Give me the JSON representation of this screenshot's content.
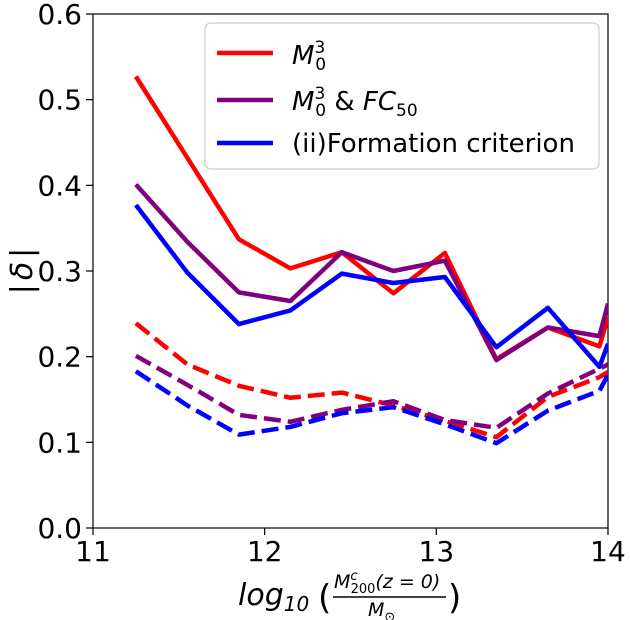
{
  "chart_data": {
    "type": "line",
    "xlim": [
      11,
      14
    ],
    "ylim": [
      0.0,
      0.6
    ],
    "x_ticks": [
      "11",
      "12",
      "13",
      "14"
    ],
    "y_ticks": [
      "0.0",
      "0.1",
      "0.2",
      "0.3",
      "0.4",
      "0.5",
      "0.6"
    ],
    "ylabel": "| δ |",
    "xlabel": "log10(M^c_200(z = 0) / M_⊙)",
    "grid": false,
    "legend_position": "top-right",
    "x": [
      11.25,
      11.55,
      11.85,
      12.15,
      12.45,
      12.75,
      13.05,
      13.35,
      13.65,
      13.95,
      14.0
    ],
    "series": [
      {
        "name": "M_0^3",
        "color": "#ff0000",
        "style": "solid",
        "in_legend": true,
        "values": [
          0.527,
          0.432,
          0.337,
          0.303,
          0.322,
          0.274,
          0.321,
          0.197,
          0.234,
          0.212,
          0.246
        ]
      },
      {
        "name": "M_0^3 & FC_50",
        "color": "#800080",
        "style": "solid",
        "in_legend": true,
        "values": [
          0.401,
          0.334,
          0.275,
          0.265,
          0.322,
          0.3,
          0.312,
          0.196,
          0.234,
          0.224,
          0.262
        ]
      },
      {
        "name": "(ii)Formation criterion",
        "color": "#0000ff",
        "style": "solid",
        "in_legend": true,
        "values": [
          0.377,
          0.298,
          0.238,
          0.254,
          0.297,
          0.286,
          0.293,
          0.211,
          0.257,
          0.188,
          0.215
        ]
      },
      {
        "name": "",
        "color": "#ff0000",
        "style": "dashed",
        "in_legend": false,
        "values": [
          0.239,
          0.191,
          0.166,
          0.152,
          0.158,
          0.143,
          0.125,
          0.106,
          0.153,
          0.176,
          0.182
        ]
      },
      {
        "name": "",
        "color": "#800080",
        "style": "dashed",
        "in_legend": false,
        "values": [
          0.201,
          0.167,
          0.132,
          0.124,
          0.138,
          0.148,
          0.126,
          0.117,
          0.157,
          0.186,
          0.191
        ]
      },
      {
        "name": "",
        "color": "#0000ff",
        "style": "dashed",
        "in_legend": false,
        "values": [
          0.183,
          0.143,
          0.109,
          0.118,
          0.134,
          0.141,
          0.121,
          0.099,
          0.137,
          0.16,
          0.179
        ]
      }
    ],
    "legend": {
      "entries": [
        {
          "main": "M",
          "sup": "3",
          "sub": "0",
          "tail_text": "",
          "tail_main": "",
          "tail_sub": ""
        },
        {
          "main": "M",
          "sup": "3",
          "sub": "0",
          "tail_text": " & ",
          "tail_main": "FC",
          "tail_sub": "50"
        },
        {
          "main": "",
          "sup": "",
          "sub": "",
          "tail_text": "(ii)Formation criterion",
          "tail_main": "",
          "tail_sub": ""
        }
      ]
    },
    "ylabel_text": {
      "bar_left": "|",
      "symbol": "δ",
      "bar_right": "|"
    },
    "xlabel_text": {
      "func": "log",
      "func_sub": "10",
      "open": "(",
      "num_main": "M",
      "num_sup": "c",
      "num_sub": "200",
      "num_tail": "(z = 0)",
      "den_main": "M",
      "den_sub": "⊙",
      "close": ")"
    }
  }
}
